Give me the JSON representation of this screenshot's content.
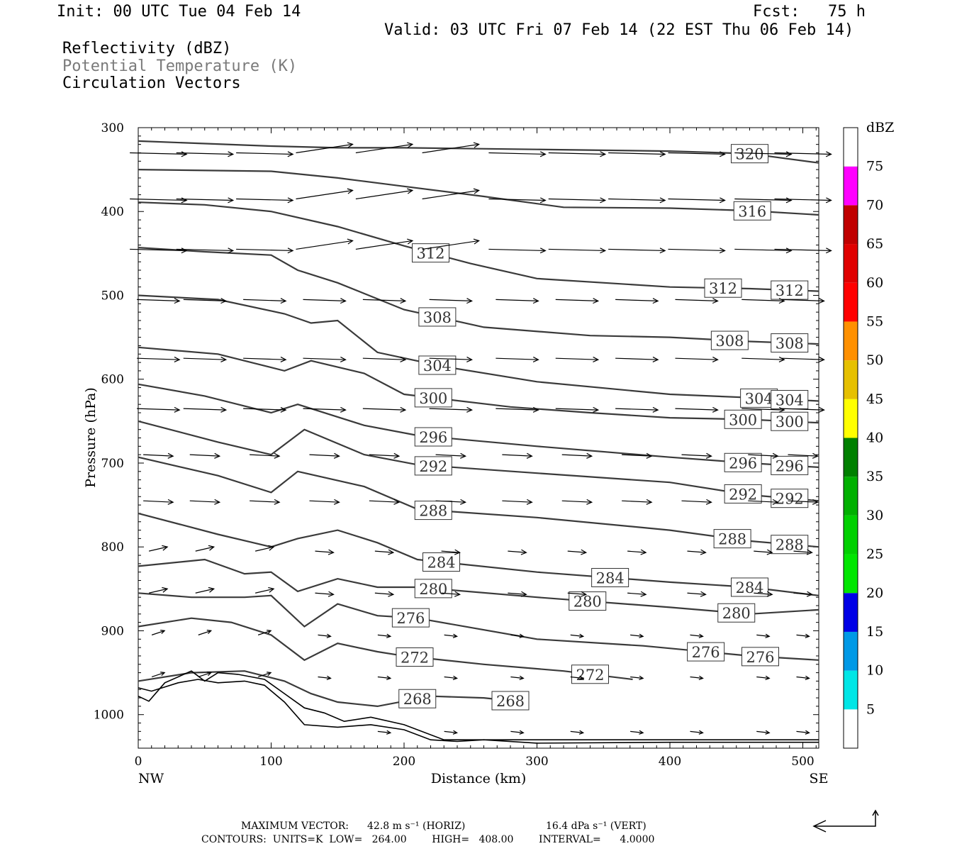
{
  "header": {
    "init": "Init: 00 UTC Tue 04 Feb 14",
    "fcst": "Fcst:   75 h",
    "valid": "Valid: 03 UTC Fri 07 Feb 14 (22 EST Thu 06 Feb 14)",
    "field1": "Reflectivity (dBZ)",
    "field2": "Potential Temperature (K)",
    "field3": "Circulation Vectors"
  },
  "footer": {
    "max_vector_label": "MAXIMUM VECTOR:",
    "max_horiz": "42.8 m s⁻¹ (HORIZ)",
    "max_vert": "16.4 dPa s⁻¹ (VERT)",
    "contours": "CONTOURS:  UNITS=K  LOW=   264.00        HIGH=   408.00        INTERVAL=      4.0000"
  },
  "colorbar": {
    "title": "dBZ",
    "labels": [
      "5",
      "10",
      "15",
      "20",
      "25",
      "30",
      "35",
      "40",
      "45",
      "50",
      "55",
      "60",
      "65",
      "70",
      "75"
    ],
    "colors": [
      "#00e6e6",
      "#0099e6",
      "#0000e6",
      "#00e600",
      "#00d000",
      "#00b000",
      "#008000",
      "#ffff00",
      "#e6c000",
      "#ff9000",
      "#ff0000",
      "#e00000",
      "#c00000",
      "#ff00ff",
      "#9966cc"
    ]
  },
  "chart_data": {
    "type": "contour",
    "title": "",
    "xlabel": "Distance (km)",
    "ylabel": "Pressure (hPa)",
    "xlim": [
      0,
      512
    ],
    "ylim": [
      1040,
      300
    ],
    "x_ticks": [
      0,
      100,
      200,
      300,
      400,
      500
    ],
    "y_ticks": [
      300,
      400,
      500,
      600,
      700,
      800,
      900,
      1000
    ],
    "x_end_labels": [
      "NW",
      "SE"
    ],
    "contour_color": "#3a3a3a",
    "isentropes": [
      {
        "theta": 320,
        "points": [
          [
            0,
            316
          ],
          [
            100,
            322
          ],
          [
            150,
            324
          ],
          [
            200,
            324
          ],
          [
            300,
            326
          ],
          [
            400,
            328
          ],
          [
            460,
            331
          ],
          [
            512,
            342
          ]
        ]
      },
      {
        "theta": 316,
        "points": [
          [
            0,
            350
          ],
          [
            100,
            352
          ],
          [
            150,
            360
          ],
          [
            200,
            370
          ],
          [
            260,
            382
          ],
          [
            320,
            395
          ],
          [
            400,
            396
          ],
          [
            460,
            399
          ],
          [
            512,
            404
          ]
        ]
      },
      {
        "theta": 312,
        "points": [
          [
            0,
            389
          ],
          [
            50,
            392
          ],
          [
            100,
            400
          ],
          [
            150,
            418
          ],
          [
            200,
            441
          ],
          [
            250,
            462
          ],
          [
            300,
            480
          ],
          [
            400,
            490
          ],
          [
            460,
            492
          ],
          [
            512,
            495
          ]
        ]
      },
      {
        "theta": 308,
        "points": [
          [
            0,
            443
          ],
          [
            50,
            448
          ],
          [
            100,
            452
          ],
          [
            120,
            470
          ],
          [
            150,
            485
          ],
          [
            200,
            517
          ],
          [
            260,
            538
          ],
          [
            340,
            548
          ],
          [
            400,
            550
          ],
          [
            460,
            555
          ],
          [
            512,
            558
          ]
        ]
      },
      {
        "theta": 304,
        "points": [
          [
            0,
            500
          ],
          [
            60,
            505
          ],
          [
            110,
            522
          ],
          [
            130,
            533
          ],
          [
            150,
            530
          ],
          [
            180,
            568
          ],
          [
            230,
            585
          ],
          [
            300,
            603
          ],
          [
            400,
            618
          ],
          [
            460,
            622
          ],
          [
            512,
            626
          ]
        ]
      },
      {
        "theta": 300,
        "points": [
          [
            0,
            562
          ],
          [
            60,
            570
          ],
          [
            110,
            590
          ],
          [
            130,
            578
          ],
          [
            170,
            593
          ],
          [
            200,
            618
          ],
          [
            280,
            633
          ],
          [
            340,
            640
          ],
          [
            400,
            646
          ],
          [
            460,
            648
          ],
          [
            512,
            652
          ]
        ]
      },
      {
        "theta": 296,
        "points": [
          [
            0,
            606
          ],
          [
            50,
            620
          ],
          [
            100,
            640
          ],
          [
            120,
            630
          ],
          [
            170,
            655
          ],
          [
            210,
            667
          ],
          [
            300,
            680
          ],
          [
            400,
            693
          ],
          [
            460,
            700
          ],
          [
            512,
            705
          ]
        ]
      },
      {
        "theta": 292,
        "points": [
          [
            0,
            650
          ],
          [
            60,
            675
          ],
          [
            100,
            690
          ],
          [
            125,
            660
          ],
          [
            170,
            690
          ],
          [
            210,
            702
          ],
          [
            300,
            712
          ],
          [
            400,
            723
          ],
          [
            460,
            738
          ],
          [
            512,
            745
          ]
        ]
      },
      {
        "theta": 288,
        "points": [
          [
            0,
            693
          ],
          [
            60,
            715
          ],
          [
            100,
            735
          ],
          [
            120,
            710
          ],
          [
            170,
            728
          ],
          [
            210,
            755
          ],
          [
            300,
            765
          ],
          [
            400,
            780
          ],
          [
            460,
            793
          ],
          [
            512,
            800
          ]
        ]
      },
      {
        "theta": 284,
        "points": [
          [
            0,
            760
          ],
          [
            60,
            785
          ],
          [
            100,
            800
          ],
          [
            120,
            790
          ],
          [
            150,
            780
          ],
          [
            180,
            795
          ],
          [
            210,
            815
          ],
          [
            300,
            830
          ],
          [
            400,
            842
          ],
          [
            460,
            848
          ],
          [
            512,
            858
          ]
        ]
      },
      {
        "theta": 280,
        "points": [
          [
            0,
            823
          ],
          [
            50,
            815
          ],
          [
            80,
            832
          ],
          [
            100,
            830
          ],
          [
            120,
            853
          ],
          [
            150,
            838
          ],
          [
            180,
            848
          ],
          [
            210,
            848
          ],
          [
            300,
            860
          ],
          [
            400,
            872
          ],
          [
            460,
            880
          ],
          [
            512,
            875
          ]
        ]
      },
      {
        "theta": 276,
        "points": [
          [
            0,
            855
          ],
          [
            40,
            860
          ],
          [
            80,
            860
          ],
          [
            100,
            858
          ],
          [
            125,
            895
          ],
          [
            150,
            868
          ],
          [
            180,
            882
          ],
          [
            210,
            885
          ],
          [
            300,
            910
          ],
          [
            380,
            918
          ],
          [
            460,
            930
          ],
          [
            512,
            935
          ]
        ]
      },
      {
        "theta": 272,
        "points": [
          [
            0,
            895
          ],
          [
            40,
            885
          ],
          [
            70,
            890
          ],
          [
            100,
            905
          ],
          [
            125,
            935
          ],
          [
            150,
            915
          ],
          [
            180,
            925
          ],
          [
            200,
            930
          ],
          [
            260,
            940
          ],
          [
            320,
            948
          ],
          [
            372,
            958
          ]
        ]
      },
      {
        "theta": 268,
        "points": [
          [
            0,
            960
          ],
          [
            40,
            950
          ],
          [
            80,
            948
          ],
          [
            110,
            960
          ],
          [
            130,
            975
          ],
          [
            150,
            985
          ],
          [
            180,
            990
          ],
          [
            220,
            978
          ],
          [
            260,
            980
          ],
          [
            290,
            985
          ]
        ]
      }
    ],
    "wind_vectors_description": "Westerly-component circulation vectors (NW to SE), weaker near surface, stronger aloft"
  }
}
